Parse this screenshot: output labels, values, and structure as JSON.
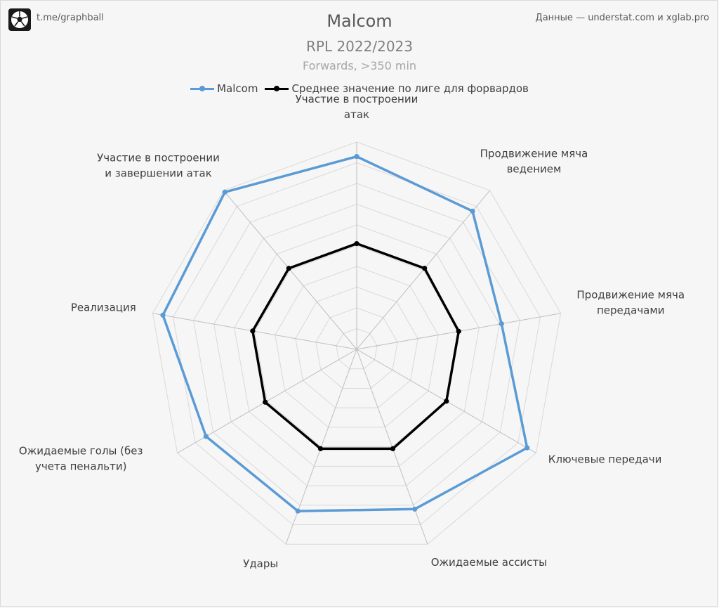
{
  "header": {
    "channel": "t.me/graphball",
    "source": "Данные — understat.com и xglab.pro"
  },
  "chart_data": {
    "type": "radar",
    "title": "Malcom",
    "subtitle": "RPL 2022/2023",
    "subtitle2": "Forwards, >350 min",
    "axes": [
      "Участие в построении атак",
      "Продвижение мяча ведением",
      "Продвижение мяча передачами",
      "Ключевые передачи",
      "Ожидаемые ассисты",
      "Удары",
      "Ожидаемые голы (без учета пенальти)",
      "Реализация",
      "Участие в построении и завершении атак"
    ],
    "range": [
      0,
      10
    ],
    "grid_levels": 10,
    "series": [
      {
        "name": "Malcom",
        "color": "#5b9bd5",
        "values": [
          9.3,
          8.7,
          7.1,
          9.5,
          8.2,
          8.3,
          8.4,
          9.5,
          9.9
        ]
      },
      {
        "name": "Среднее значение по лиге для форвардов",
        "color": "#000000",
        "values": [
          5.1,
          5.1,
          5.0,
          5.0,
          5.1,
          5.1,
          5.1,
          5.1,
          5.1
        ]
      }
    ],
    "legend_position": "top"
  }
}
